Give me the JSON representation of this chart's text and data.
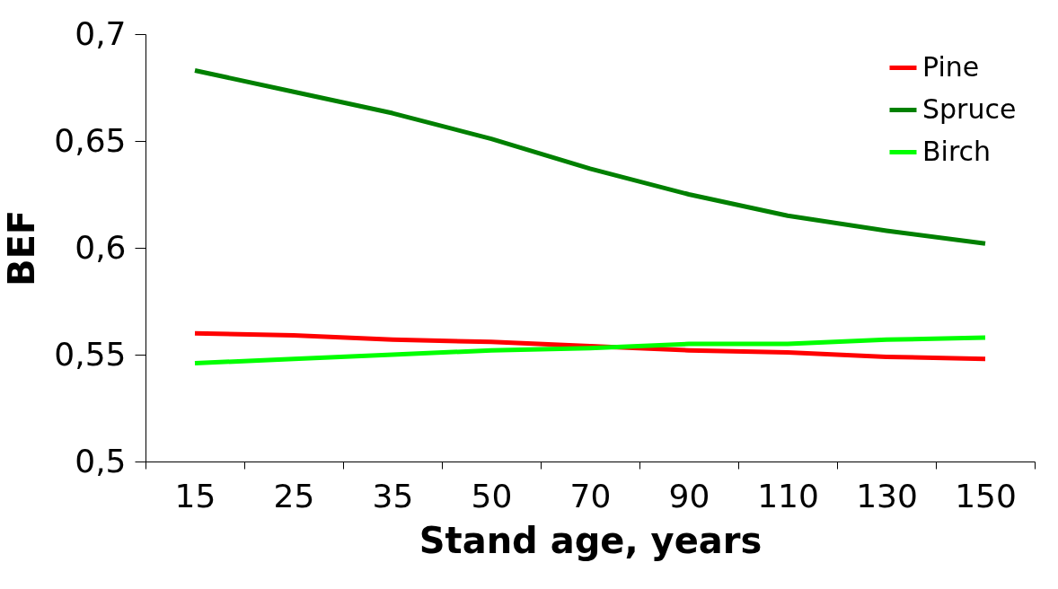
{
  "chart_data": {
    "type": "line",
    "xlabel": "Stand age, years",
    "ylabel": "BEF",
    "categories": [
      "15",
      "25",
      "35",
      "50",
      "70",
      "90",
      "110",
      "130",
      "150"
    ],
    "series": [
      {
        "name": "Pine",
        "color": "#ff0000",
        "values": [
          0.56,
          0.559,
          0.557,
          0.556,
          0.554,
          0.552,
          0.551,
          0.549,
          0.548
        ]
      },
      {
        "name": "Spruce",
        "color": "#008000",
        "values": [
          0.683,
          0.673,
          0.663,
          0.651,
          0.637,
          0.625,
          0.615,
          0.608,
          0.602
        ]
      },
      {
        "name": "Birch",
        "color": "#00ff00",
        "values": [
          0.546,
          0.548,
          0.55,
          0.552,
          0.553,
          0.555,
          0.555,
          0.557,
          0.558
        ]
      }
    ],
    "ylim": [
      0.5,
      0.7
    ],
    "yticks": [
      {
        "value": 0.5,
        "label": "0,5"
      },
      {
        "value": 0.55,
        "label": "0,55"
      },
      {
        "value": 0.6,
        "label": "0,6"
      },
      {
        "value": 0.65,
        "label": "0,65"
      },
      {
        "value": 0.7,
        "label": "0,7"
      }
    ],
    "grid": false,
    "legend": "top right",
    "marker": "none",
    "line_style": "solid"
  }
}
